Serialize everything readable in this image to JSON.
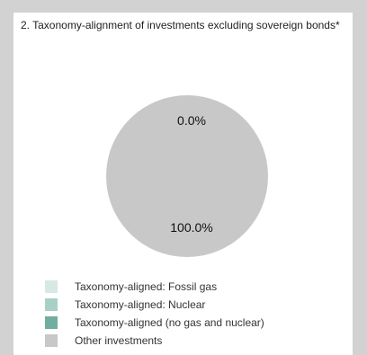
{
  "chart_data": {
    "type": "pie",
    "title": "2. Taxonomy-alignment of investments excluding sovereign bonds*",
    "slices": [
      {
        "name": "Taxonomy-aligned: Fossil gas",
        "value": 0.0,
        "color": "#d7e9e5"
      },
      {
        "name": "Taxonomy-aligned: Nuclear",
        "value": 0.0,
        "color": "#a9d0c6"
      },
      {
        "name": "Taxonomy-aligned (no gas and nuclear)",
        "value": 0.0,
        "color": "#72aea0"
      },
      {
        "name": "Other investments",
        "value": 100.0,
        "color": "#c8c8c8"
      }
    ],
    "data_labels": [
      "0.0%",
      "100.0%"
    ],
    "legend_position": "bottom-left"
  }
}
